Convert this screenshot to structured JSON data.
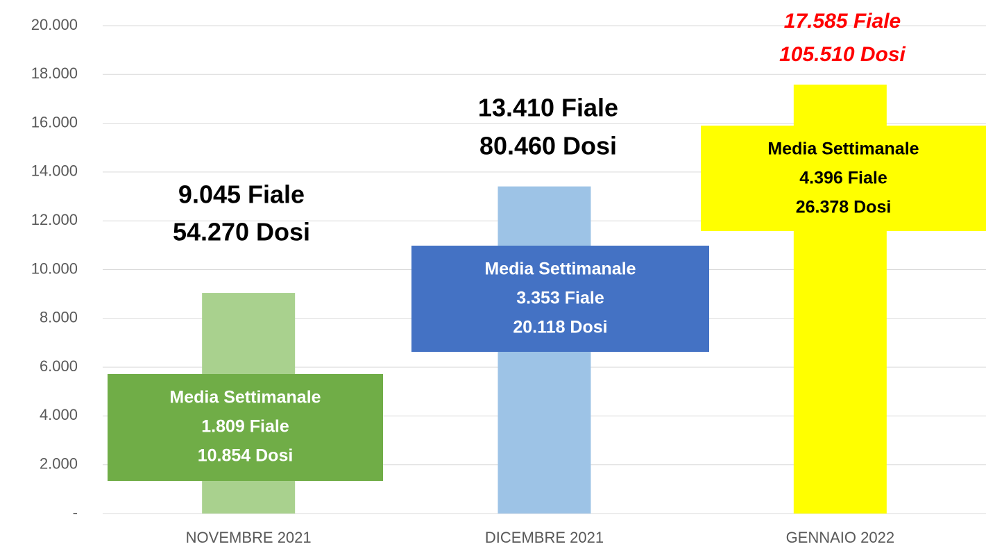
{
  "chart_data": {
    "type": "bar",
    "categories": [
      "NOVEMBRE 2021",
      "DICEMBRE 2021",
      "GENNAIO 2022"
    ],
    "values": [
      9045,
      13410,
      17585
    ],
    "value_labels": [
      "9.045 Fiale",
      "13.410 Fiale",
      "17.585 Fiale"
    ],
    "dose_labels": [
      "54.270 Dosi",
      "80.460 Dosi",
      "105.510 Dosi"
    ],
    "label_colors": [
      "#000000",
      "#000000",
      "#ff0000"
    ],
    "colors": [
      "#a9d18e",
      "#9dc3e6",
      "#ffff00"
    ],
    "boxes": [
      {
        "lines": [
          "Media Settimanale",
          "1.809 Fiale",
          "10.854 Dosi"
        ],
        "color": "#70ad47",
        "text_color": "#ffffff"
      },
      {
        "lines": [
          "Media Settimanale",
          "3.353 Fiale",
          "20.118 Dosi"
        ],
        "color": "#4472c4",
        "text_color": "#ffffff"
      },
      {
        "lines": [
          "Media Settimanale",
          "4.396 Fiale",
          "26.378 Dosi"
        ],
        "color": "#ffff00",
        "text_color": "#000000"
      }
    ],
    "ylim": [
      0,
      20000
    ],
    "yticks": [
      {
        "value": 0,
        "label": "-"
      },
      {
        "value": 2000,
        "label": "2.000"
      },
      {
        "value": 4000,
        "label": "4.000"
      },
      {
        "value": 6000,
        "label": "6.000"
      },
      {
        "value": 8000,
        "label": "8.000"
      },
      {
        "value": 10000,
        "label": "10.000"
      },
      {
        "value": 12000,
        "label": "12.000"
      },
      {
        "value": 14000,
        "label": "14.000"
      },
      {
        "value": 16000,
        "label": "16.000"
      },
      {
        "value": 18000,
        "label": "18.000"
      },
      {
        "value": 20000,
        "label": "20.000"
      }
    ],
    "grid": true
  }
}
